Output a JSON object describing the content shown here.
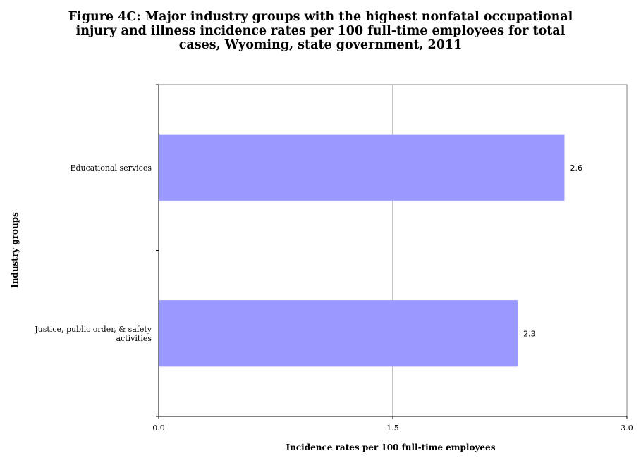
{
  "chart_data": {
    "type": "bar",
    "orientation": "horizontal",
    "title_lines": [
      "Figure 4C: Major industry groups with the highest nonfatal occupational",
      "injury and illness incidence rates per 100 full-time employees for total",
      "cases, Wyoming, state government, 2011"
    ],
    "categories": [
      [
        "Educational services"
      ],
      [
        "Justice, public order, & safety",
        "activities"
      ]
    ],
    "values": [
      2.6,
      2.3
    ],
    "value_labels": [
      "2.6",
      "2.3"
    ],
    "xlabel": "Incidence rates per 100 full-time employees",
    "ylabel": "Industry groups",
    "xlim": [
      0,
      3.0
    ],
    "xticks": [
      0,
      1.5,
      3.0
    ],
    "xtick_labels": [
      "0.0",
      "1.5",
      "3.0"
    ],
    "bar_color": "#9999ff",
    "grid": "vertical at x ticks",
    "legend": "none"
  }
}
